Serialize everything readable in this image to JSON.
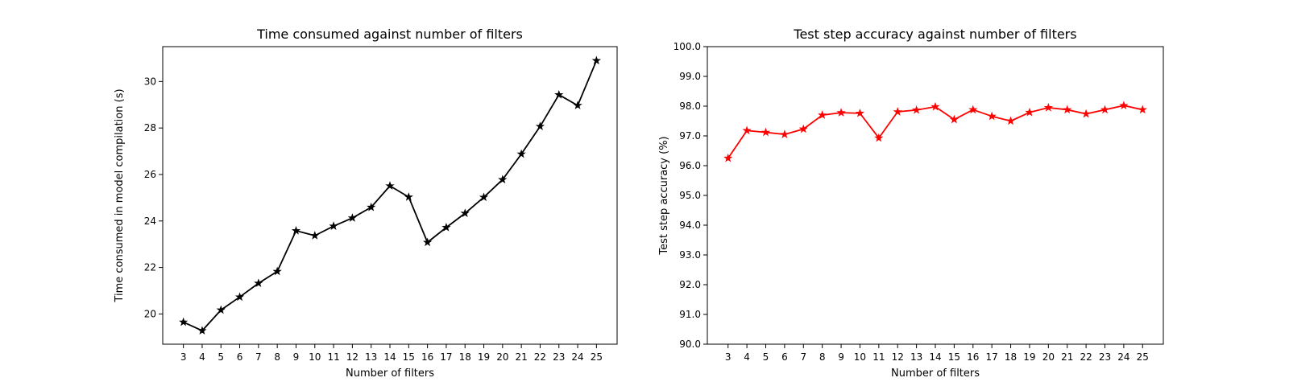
{
  "chart_data": [
    {
      "type": "line",
      "title": "Time consumed against number of filters",
      "xlabel": "Number of filters",
      "ylabel": "Time consumed in model compilation (s)",
      "x": [
        3,
        4,
        5,
        6,
        7,
        8,
        9,
        10,
        11,
        12,
        13,
        14,
        15,
        16,
        17,
        18,
        19,
        20,
        21,
        22,
        23,
        24,
        25
      ],
      "xticks": [
        "3",
        "4",
        "5",
        "6",
        "7",
        "8",
        "9",
        "10",
        "11",
        "12",
        "13",
        "14",
        "15",
        "16",
        "17",
        "18",
        "19",
        "20",
        "21",
        "22",
        "23",
        "24",
        "25"
      ],
      "series": [
        {
          "values": [
            19.65,
            19.28,
            20.17,
            20.73,
            21.32,
            21.83,
            23.58,
            23.37,
            23.78,
            24.13,
            24.59,
            25.51,
            25.03,
            23.08,
            23.72,
            24.33,
            25.02,
            25.78,
            26.88,
            28.07,
            29.43,
            28.97,
            30.9
          ],
          "color": "#000000",
          "marker": "star"
        }
      ],
      "ylim": [
        18.7,
        31.5
      ],
      "yticks": [
        "20",
        "22",
        "24",
        "26",
        "28",
        "30"
      ],
      "xlim": [
        1.9,
        26.1
      ],
      "grid": false
    },
    {
      "type": "line",
      "title": "Test step accuracy against number of filters",
      "xlabel": "Number of filters",
      "ylabel": "Test step accuracy (%)",
      "x": [
        3,
        4,
        5,
        6,
        7,
        8,
        9,
        10,
        11,
        12,
        13,
        14,
        15,
        16,
        17,
        18,
        19,
        20,
        21,
        22,
        23,
        24,
        25
      ],
      "xticks": [
        "3",
        "4",
        "5",
        "6",
        "7",
        "8",
        "9",
        "10",
        "11",
        "12",
        "13",
        "14",
        "15",
        "16",
        "17",
        "18",
        "19",
        "20",
        "21",
        "22",
        "23",
        "24",
        "25"
      ],
      "series": [
        {
          "values": [
            96.25,
            97.18,
            97.12,
            97.05,
            97.23,
            97.7,
            97.78,
            97.76,
            96.93,
            97.81,
            97.87,
            97.98,
            97.55,
            97.88,
            97.66,
            97.5,
            97.79,
            97.95,
            97.88,
            97.74,
            97.88,
            98.02,
            97.88
          ],
          "color": "#ff0000",
          "marker": "star"
        }
      ],
      "ylim": [
        90.0,
        100.0
      ],
      "yticks": [
        "90.0",
        "91.0",
        "92.0",
        "93.0",
        "94.0",
        "95.0",
        "96.0",
        "97.0",
        "98.0",
        "99.0",
        "100.0"
      ],
      "xlim": [
        1.9,
        26.1
      ],
      "grid": false
    }
  ]
}
